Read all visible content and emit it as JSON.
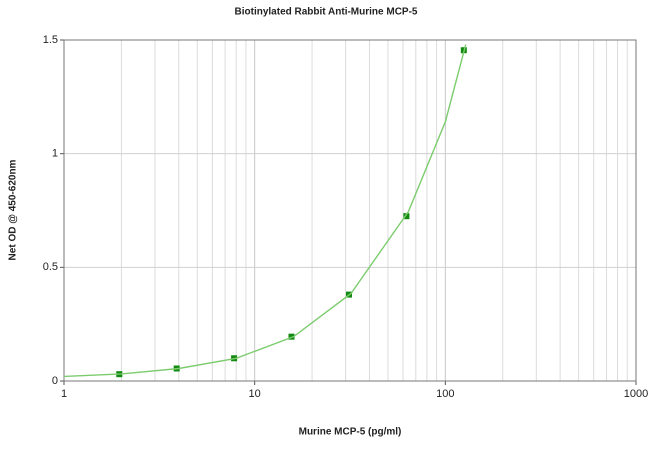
{
  "chart_data": {
    "type": "scatter",
    "title": "Biotinylated Rabbit Anti-Murine MCP-5",
    "xlabel": "Murine MCP-5 (pg/ml)",
    "ylabel": "Net OD @ 450-620nm",
    "xscale": "log",
    "xlim": [
      1,
      1000
    ],
    "ylim": [
      0,
      1.5
    ],
    "xticks": [
      1,
      10,
      100,
      1000
    ],
    "xminorticks": [
      2,
      3,
      4,
      5,
      6,
      7,
      8,
      9,
      20,
      30,
      40,
      50,
      60,
      70,
      80,
      90,
      200,
      300,
      400,
      500,
      600,
      700,
      800,
      900
    ],
    "yticks": [
      0,
      0.5,
      1,
      1.5
    ],
    "grid": true,
    "series": [
      {
        "mode": "markers",
        "color": "#128a12",
        "x": [
          1.95,
          3.9,
          7.8,
          15.6,
          31.25,
          62.5,
          125
        ],
        "values": [
          0.03,
          0.055,
          0.1,
          0.195,
          0.38,
          0.725,
          1.455
        ]
      },
      {
        "mode": "line",
        "color": "#7ccc6e",
        "x": [
          1,
          2,
          4,
          8,
          16,
          32,
          64,
          100,
          128
        ],
        "values": [
          0.02,
          0.031,
          0.055,
          0.1,
          0.195,
          0.385,
          0.745,
          1.14,
          1.48
        ]
      }
    ]
  }
}
